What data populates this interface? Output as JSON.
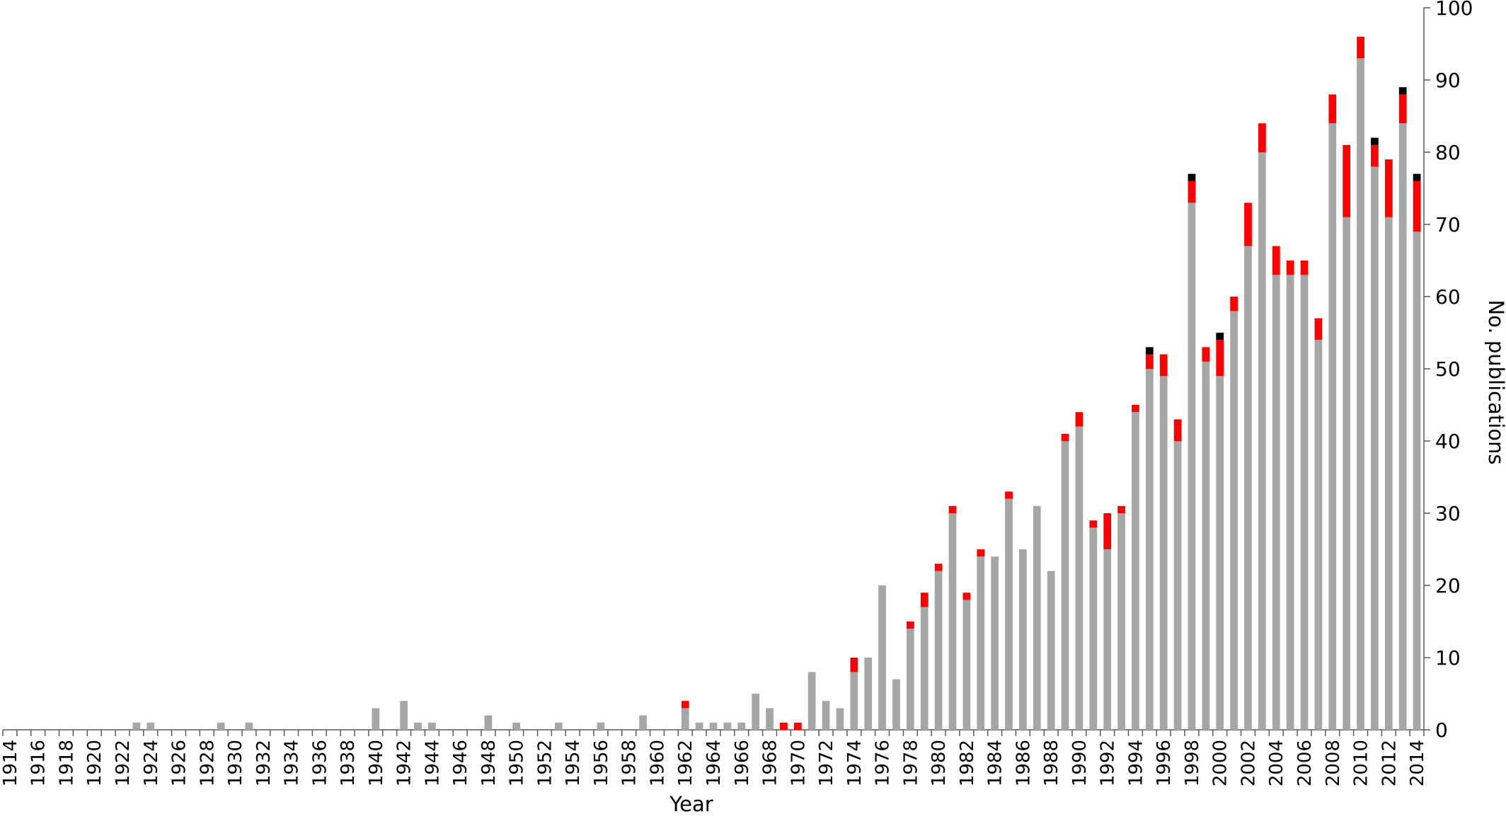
{
  "chart_data": {
    "type": "stacked-bar",
    "x_label": "Year",
    "y_label": "No. publications",
    "categories": [
      "1914",
      null,
      "1916",
      null,
      "1918",
      null,
      "1920",
      null,
      "1922",
      null,
      "1924",
      null,
      "1926",
      null,
      "1928",
      null,
      "1930",
      null,
      "1932",
      null,
      "1934",
      null,
      "1936",
      null,
      "1938",
      null,
      "1940",
      null,
      "1942",
      null,
      "1944",
      null,
      "1946",
      null,
      "1948",
      null,
      "1950",
      null,
      "1952",
      null,
      "1954",
      null,
      "1956",
      null,
      "1958",
      null,
      "1960",
      null,
      "1962",
      null,
      "1964",
      null,
      "1966",
      null,
      "1968",
      null,
      "1970",
      null,
      "1972",
      null,
      "1974",
      null,
      "1976",
      null,
      "1978",
      null,
      "1980",
      null,
      "1982",
      null,
      "1984",
      null,
      "1986",
      null,
      "1988",
      null,
      "1990",
      null,
      "1992",
      null,
      "1994",
      null,
      "1996",
      null,
      "1998",
      null,
      "2000",
      null,
      "2002",
      null,
      "2004",
      null,
      "2006",
      null,
      "2008",
      null,
      "2010",
      null,
      "2012",
      null,
      "2014"
    ],
    "series": [
      {
        "color": "#a6a6a6",
        "values": [
          0,
          0,
          0,
          0,
          0,
          0,
          0,
          0,
          0,
          1,
          1,
          0,
          0,
          0,
          0,
          1,
          0,
          1,
          0,
          0,
          0,
          0,
          0,
          0,
          0,
          0,
          3,
          0,
          4,
          1,
          1,
          0,
          0,
          0,
          2,
          0,
          1,
          0,
          0,
          1,
          0,
          0,
          1,
          0,
          0,
          2,
          0,
          0,
          3,
          1,
          1,
          1,
          1,
          5,
          3,
          0,
          0,
          8,
          4,
          3,
          8,
          10,
          20,
          7,
          14,
          17,
          22,
          30,
          18,
          24,
          24,
          32,
          25,
          31,
          22,
          40,
          42,
          28,
          25,
          30,
          44,
          50,
          49,
          40,
          73,
          51,
          49,
          58,
          67,
          80,
          63,
          63,
          63,
          54,
          84,
          71,
          93,
          78,
          71,
          84,
          69
        ]
      },
      {
        "color": "#ff0000",
        "values": [
          0,
          0,
          0,
          0,
          0,
          0,
          0,
          0,
          0,
          0,
          0,
          0,
          0,
          0,
          0,
          0,
          0,
          0,
          0,
          0,
          0,
          0,
          0,
          0,
          0,
          0,
          0,
          0,
          0,
          0,
          0,
          0,
          0,
          0,
          0,
          0,
          0,
          0,
          0,
          0,
          0,
          0,
          0,
          0,
          0,
          0,
          0,
          0,
          1,
          0,
          0,
          0,
          0,
          0,
          0,
          1,
          1,
          0,
          0,
          0,
          2,
          0,
          0,
          0,
          1,
          2,
          1,
          1,
          1,
          1,
          0,
          1,
          0,
          0,
          0,
          1,
          2,
          1,
          5,
          1,
          1,
          2,
          3,
          3,
          3,
          2,
          5,
          2,
          6,
          4,
          4,
          2,
          2,
          3,
          4,
          10,
          3,
          3,
          8,
          4,
          7
        ]
      },
      {
        "color": "#000000",
        "values": [
          0,
          0,
          0,
          0,
          0,
          0,
          0,
          0,
          0,
          0,
          0,
          0,
          0,
          0,
          0,
          0,
          0,
          0,
          0,
          0,
          0,
          0,
          0,
          0,
          0,
          0,
          0,
          0,
          0,
          0,
          0,
          0,
          0,
          0,
          0,
          0,
          0,
          0,
          0,
          0,
          0,
          0,
          0,
          0,
          0,
          0,
          0,
          0,
          0,
          0,
          0,
          0,
          0,
          0,
          0,
          0,
          0,
          0,
          0,
          0,
          0,
          0,
          0,
          0,
          0,
          0,
          0,
          0,
          0,
          0,
          0,
          0,
          0,
          0,
          0,
          0,
          0,
          0,
          0,
          0,
          0,
          1,
          0,
          0,
          1,
          0,
          1,
          0,
          0,
          0,
          0,
          0,
          0,
          0,
          0,
          0,
          0,
          1,
          0,
          1,
          1
        ]
      }
    ],
    "ylim": [
      0,
      100
    ],
    "yticks": [
      0,
      10,
      20,
      30,
      40,
      50,
      60,
      70,
      80,
      90,
      100
    ],
    "grid": false,
    "y_axis_side": "right"
  }
}
